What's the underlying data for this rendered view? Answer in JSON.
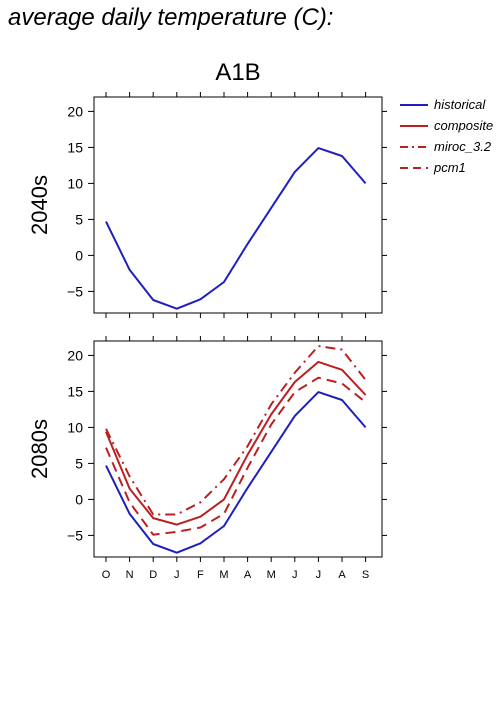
{
  "page": {
    "title": "average daily temperature (C):"
  },
  "colors": {
    "historical": "#1f1fbf",
    "red": "#bb2020"
  },
  "chart_data": {
    "title": "A1B",
    "type": "line",
    "categories": [
      "O",
      "N",
      "D",
      "J",
      "F",
      "M",
      "A",
      "M",
      "J",
      "J",
      "A",
      "S"
    ],
    "ylim": [
      -8,
      22
    ],
    "yticks": [
      -5,
      0,
      5,
      10,
      15,
      20
    ],
    "legend": {
      "placement": "top-right, outside",
      "entries": [
        {
          "name": "historical",
          "color": "#1f1fbf",
          "dash": "solid"
        },
        {
          "name": "composite",
          "color": "#bb2020",
          "dash": "solid"
        },
        {
          "name": "miroc_3.2",
          "color": "#bb2020",
          "dash": "dashdot"
        },
        {
          "name": "pcm1",
          "color": "#bb2020",
          "dash": "dashed"
        }
      ]
    },
    "panels": [
      {
        "ylabel": "2040s",
        "series": [
          {
            "name": "historical",
            "values": [
              4.7,
              -2.0,
              -6.2,
              -7.4,
              -6.1,
              -3.7,
              1.6,
              6.6,
              11.6,
              14.9,
              13.8,
              10.0
            ]
          }
        ]
      },
      {
        "ylabel": "2080s",
        "series": [
          {
            "name": "historical",
            "values": [
              4.7,
              -2.0,
              -6.2,
              -7.4,
              -6.1,
              -3.7,
              1.6,
              6.6,
              11.6,
              14.9,
              13.8,
              10.0
            ]
          },
          {
            "name": "composite",
            "values": [
              9.4,
              1.5,
              -2.6,
              -3.5,
              -2.4,
              0.0,
              6.2,
              11.8,
              16.3,
              19.1,
              18.0,
              14.5
            ]
          },
          {
            "name": "miroc_3.2",
            "values": [
              9.8,
              3.2,
              -2.1,
              -2.1,
              -0.4,
              2.8,
              7.4,
              13.2,
              17.6,
              21.3,
              20.8,
              16.6
            ]
          },
          {
            "name": "pcm1",
            "values": [
              7.2,
              -0.4,
              -4.9,
              -4.5,
              -3.9,
              -2.0,
              4.4,
              10.4,
              14.9,
              16.9,
              16.1,
              13.5
            ]
          }
        ]
      }
    ]
  }
}
